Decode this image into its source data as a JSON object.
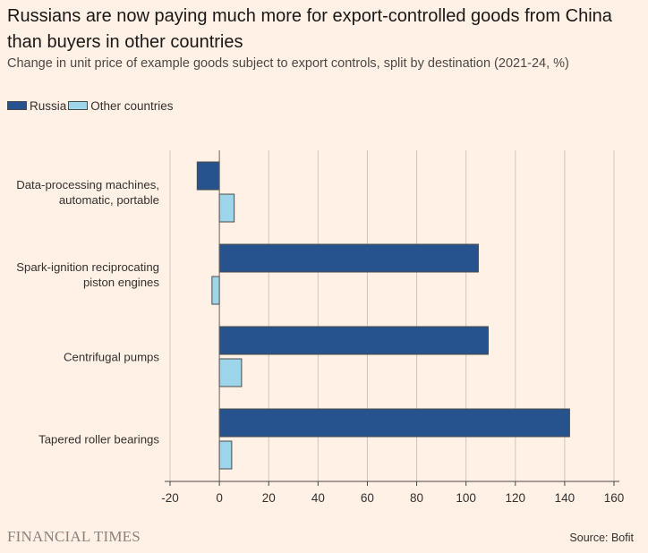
{
  "title": "Russians are now paying much more for export-controlled goods from China than buyers in other countries",
  "subtitle": "Change in unit price of example goods subject to export controls, split by destination (2021-24, %)",
  "source": "Source: Bofit",
  "brand": "FINANCIAL TIMES",
  "colors": {
    "background": "#fff1e5",
    "russia": "#26538d",
    "other": "#9dd5ea",
    "grid": "#cfc6bd",
    "outline": "#4a4a4a"
  },
  "chart_data": {
    "type": "bar",
    "orientation": "horizontal",
    "title": "Russians are now paying much more for export-controlled goods from China than buyers in other countries",
    "xlabel": "",
    "ylabel": "",
    "xlim": [
      -20,
      160
    ],
    "xticks": [
      -20,
      0,
      20,
      40,
      60,
      80,
      100,
      120,
      140,
      160
    ],
    "grid": true,
    "legend_position": "top-left",
    "categories": [
      [
        "Data-processing machines,",
        "automatic, portable"
      ],
      [
        "Spark-ignition reciprocating",
        "piston engines"
      ],
      [
        "Centrifugal pumps"
      ],
      [
        "Tapered roller bearings"
      ]
    ],
    "series": [
      {
        "name": "Russia",
        "color": "#26538d",
        "values": [
          -9,
          105,
          109,
          142
        ]
      },
      {
        "name": "Other countries",
        "color": "#9dd5ea",
        "values": [
          6,
          -3,
          9,
          5
        ]
      }
    ]
  }
}
